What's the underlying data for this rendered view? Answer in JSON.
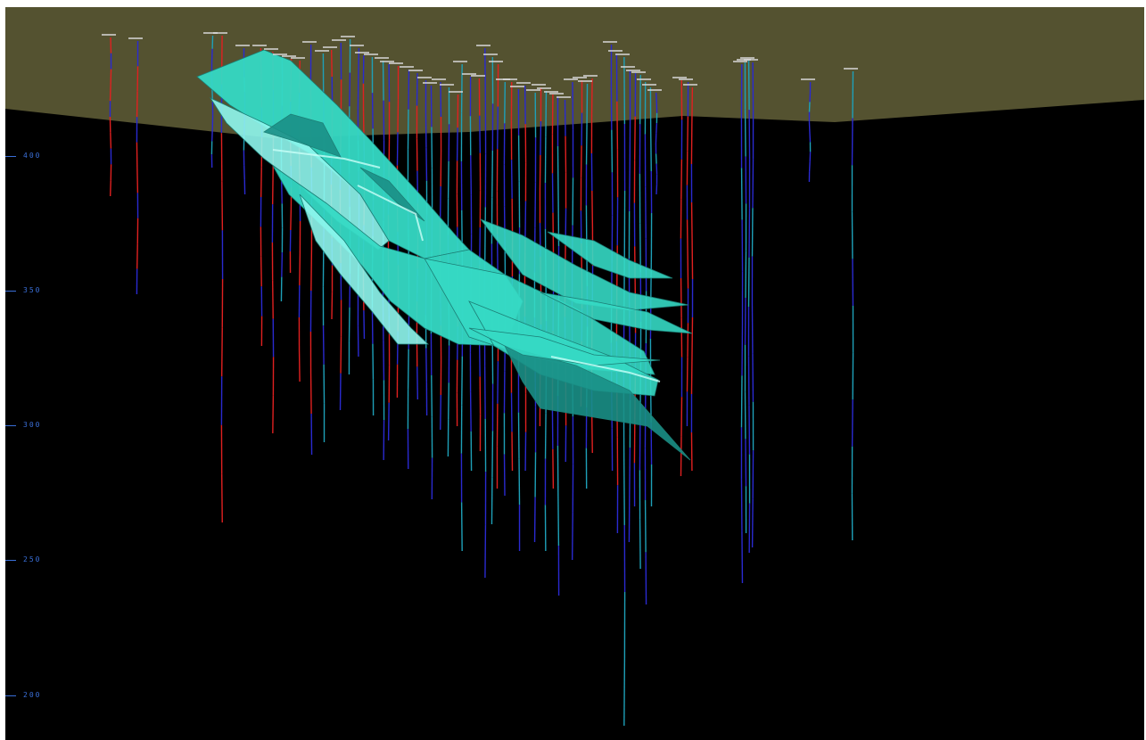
{
  "viewer": {
    "background": "#000000",
    "topography_color": "#545230",
    "orebody_color": "#35d9c4",
    "orebody_highlight": "#8ff7ee",
    "orebody_shadow": "#1a8f86"
  },
  "elevation_axis": {
    "labels": [
      "400",
      "350",
      "300",
      "250",
      "200"
    ],
    "values": [
      400,
      350,
      300,
      250,
      200
    ],
    "color": "#3a6fd8"
  },
  "drillhole_colors": {
    "high_grade": "#e02020",
    "low_grade": "#2a2ad0",
    "trace": "#1ea0b8"
  }
}
